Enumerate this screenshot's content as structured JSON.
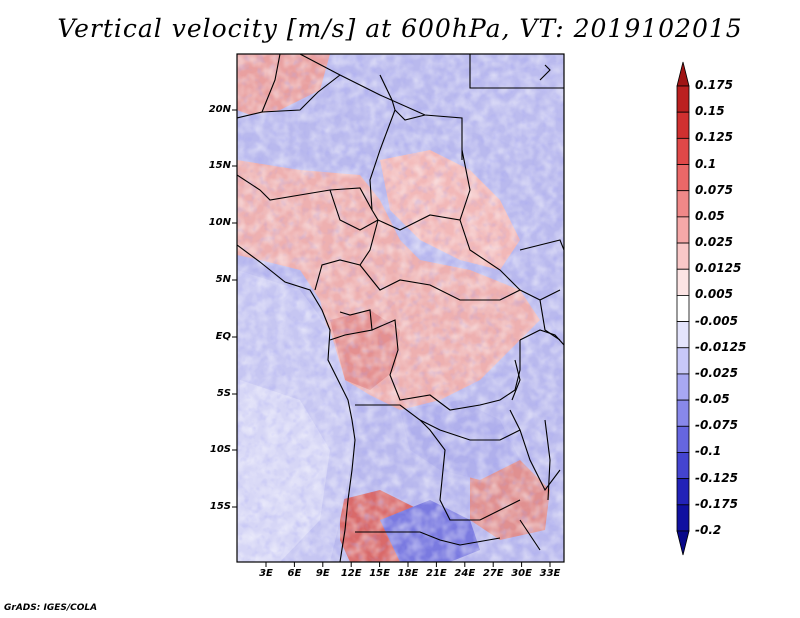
{
  "title": "Vertical velocity [m/s] at 600hPa, VT: 2019102015",
  "footer": "GrADS: IGES/COLA",
  "map": {
    "lat_ticks": [
      "20N",
      "15N",
      "10N",
      "5N",
      "EQ",
      "5S",
      "10S",
      "15S"
    ],
    "lon_ticks": [
      "3E",
      "6E",
      "9E",
      "12E",
      "15E",
      "18E",
      "21E",
      "24E",
      "27E",
      "30E",
      "33E"
    ]
  },
  "colorbar": {
    "labels": [
      "0.175",
      "0.15",
      "0.125",
      "0.1",
      "0.075",
      "0.05",
      "0.025",
      "0.0125",
      "0.005",
      "-0.005",
      "-0.0125",
      "-0.025",
      "-0.05",
      "-0.075",
      "-0.1",
      "-0.125",
      "-0.175",
      "-0.2"
    ],
    "colors": [
      "#a01515",
      "#bb2020",
      "#d03030",
      "#e04848",
      "#ea6868",
      "#f08888",
      "#f5a8a8",
      "#f9c8c8",
      "#fce4e4",
      "#ffffff",
      "#e4e4fc",
      "#c8c8f8",
      "#a8a8f2",
      "#8888ea",
      "#6666e0",
      "#4444d0",
      "#2222b8",
      "#1010a0",
      "#08088a"
    ]
  }
}
